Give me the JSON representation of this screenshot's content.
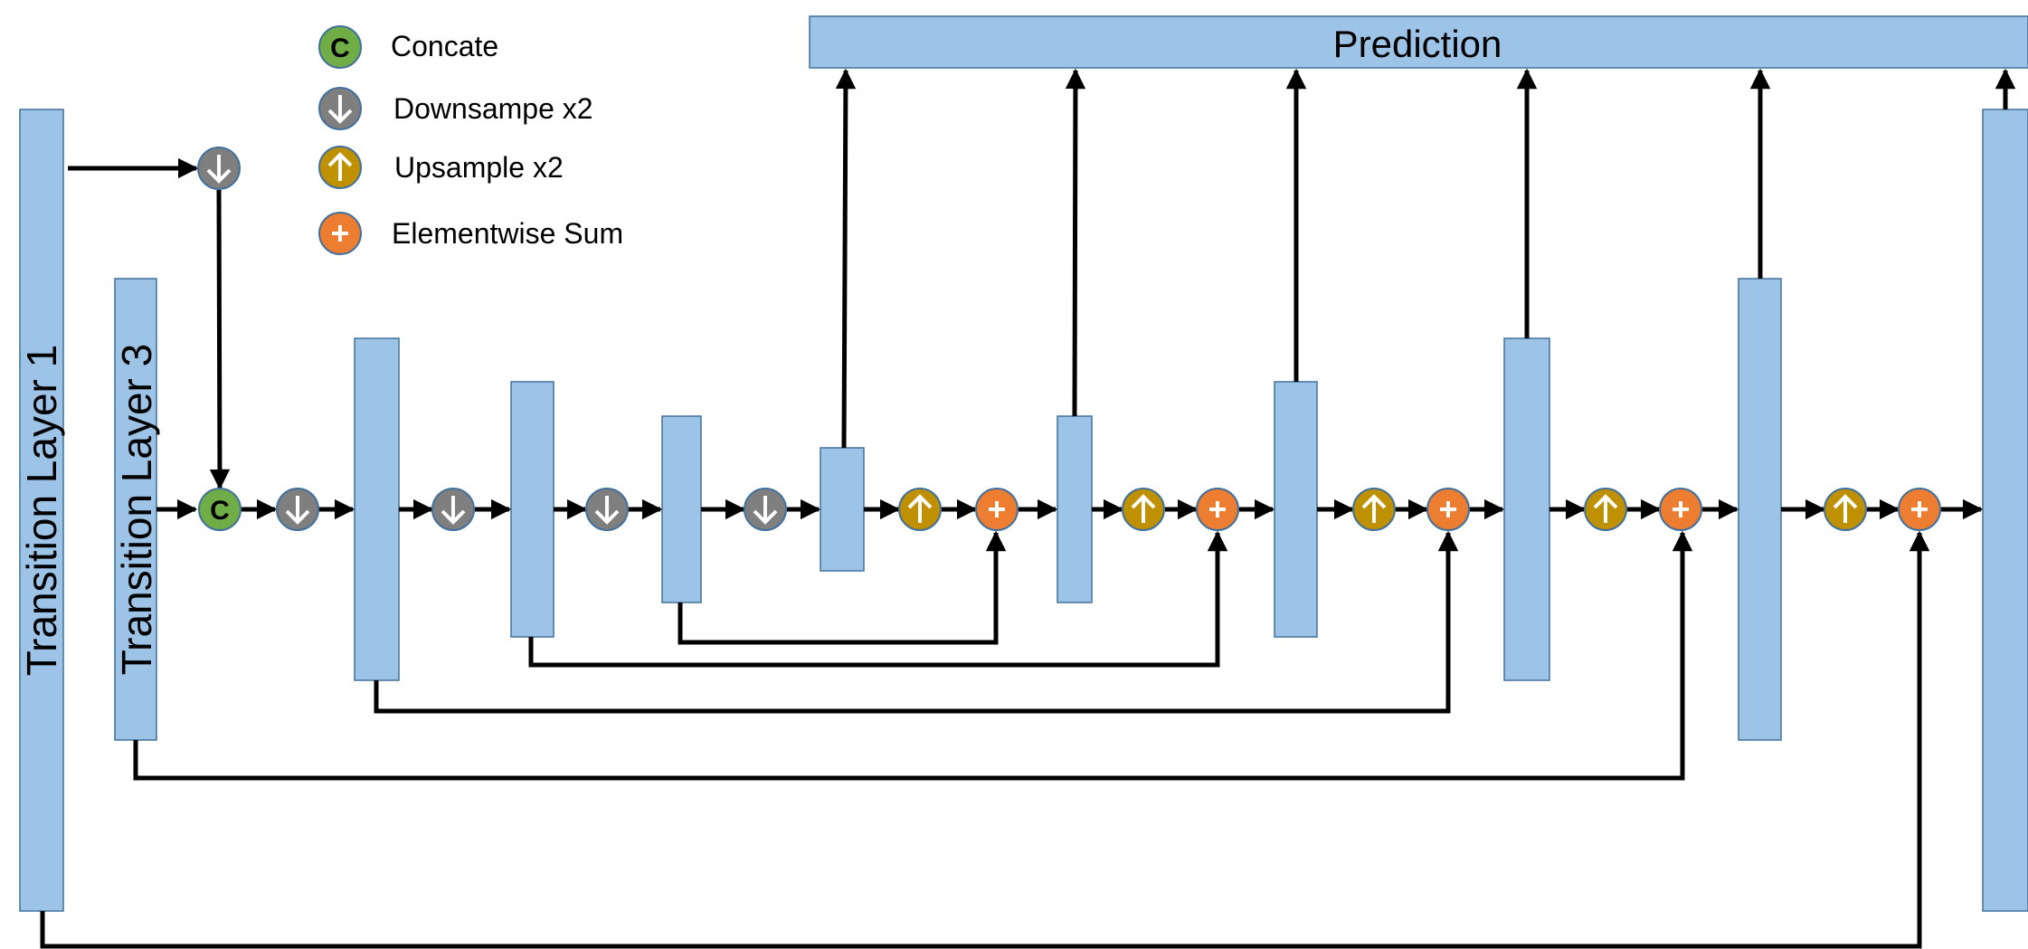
{
  "diagram": {
    "prediction_label": "Prediction",
    "transition_layer_1": "Transition Layer 1",
    "transition_layer_3": "Transition Layer 3",
    "legend": [
      {
        "symbol": "concat",
        "label": "Concate"
      },
      {
        "symbol": "downsample",
        "label": "Downsampe x2"
      },
      {
        "symbol": "upsample",
        "label": "Upsample x2"
      },
      {
        "symbol": "sum",
        "label": "Elementwise Sum"
      }
    ],
    "symbols": {
      "concat": {
        "letter": "C",
        "color": "#70ad47"
      },
      "downsample": {
        "icon": "arrow-down-icon",
        "color": "#7f7f7f"
      },
      "upsample": {
        "icon": "arrow-up-icon",
        "color": "#bf9000"
      },
      "sum": {
        "letter": "+",
        "color": "#ed7d31"
      }
    },
    "colors": {
      "block_fill": "#9dc3e6",
      "block_stroke": "#41719c",
      "arrow": "#000000"
    }
  }
}
